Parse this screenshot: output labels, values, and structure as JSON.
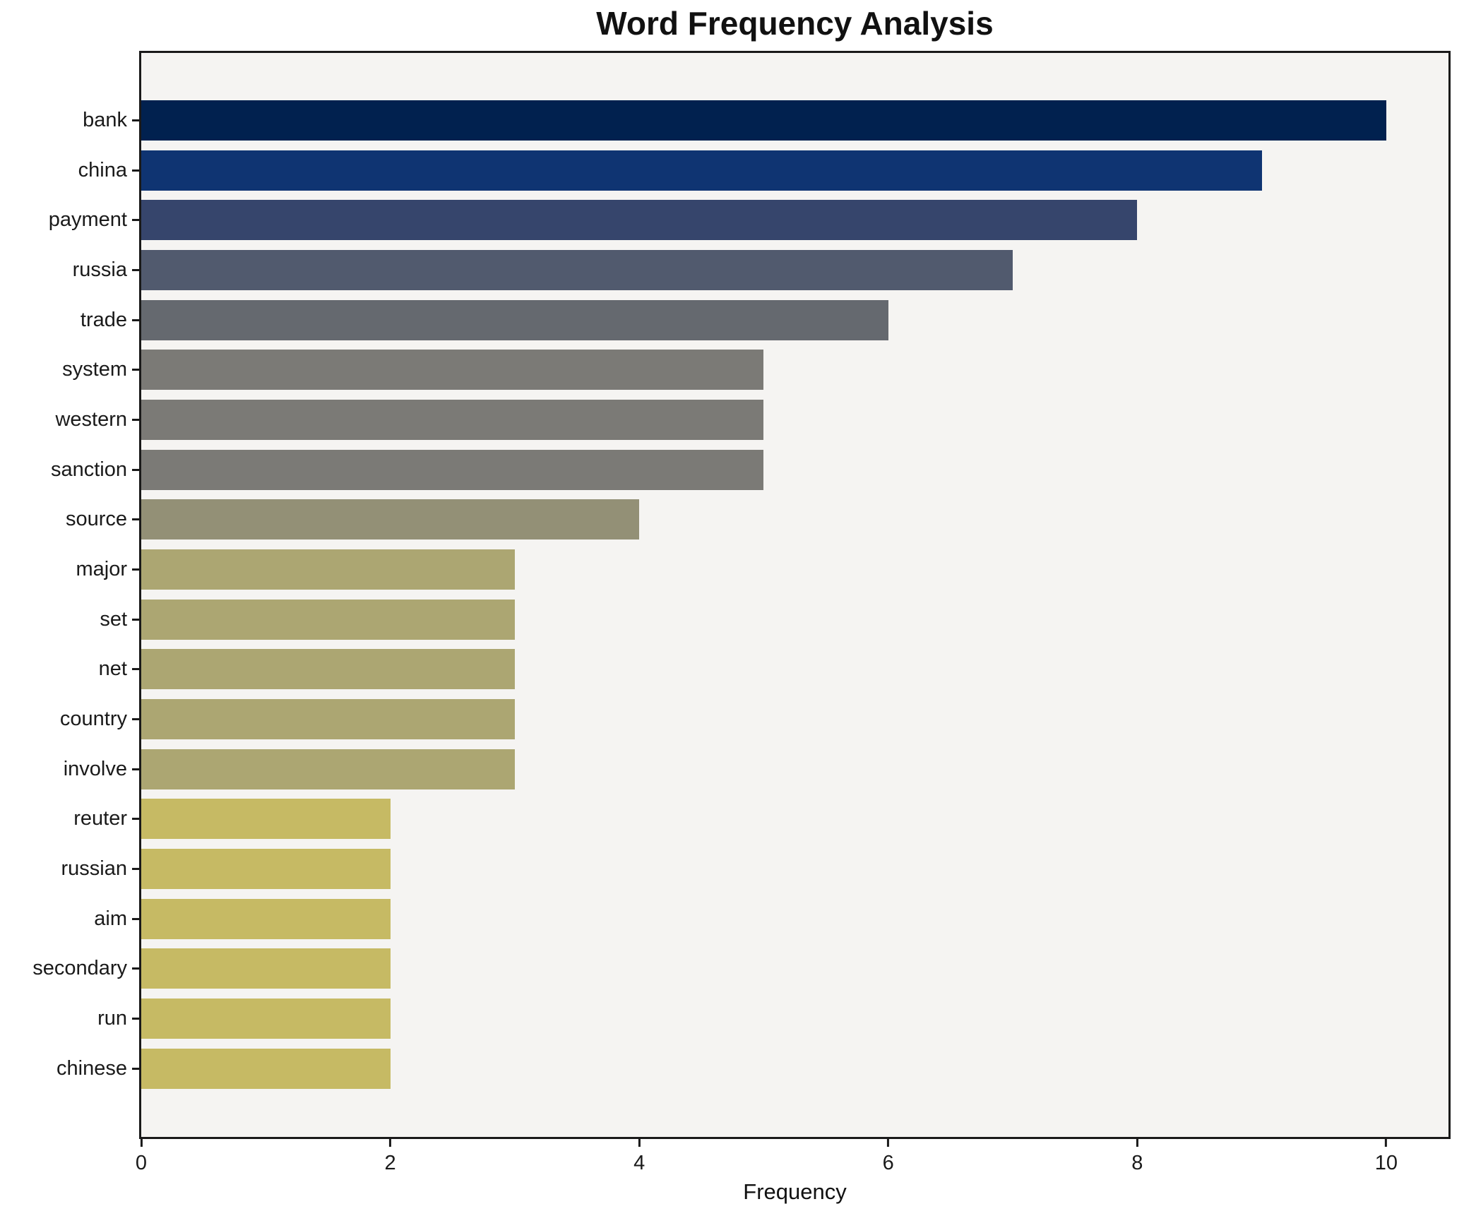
{
  "title": "Word Frequency Analysis",
  "chart_data": {
    "type": "bar",
    "orientation": "horizontal",
    "title": "Word Frequency Analysis",
    "xlabel": "Frequency",
    "ylabel": "",
    "xlim": [
      0,
      10.5
    ],
    "xticks": [
      0,
      2,
      4,
      6,
      8,
      10
    ],
    "grid": false,
    "legend": "none",
    "colormap": "cividis",
    "plot_background": "#f5f4f2",
    "figure_background": "#ffffff",
    "categories": [
      "bank",
      "china",
      "payment",
      "russia",
      "trade",
      "system",
      "western",
      "sanction",
      "source",
      "major",
      "set",
      "net",
      "country",
      "involve",
      "reuter",
      "russian",
      "aim",
      "secondary",
      "run",
      "chinese"
    ],
    "values": [
      10,
      9,
      8,
      7,
      6,
      5,
      5,
      5,
      4,
      3,
      3,
      3,
      3,
      3,
      2,
      2,
      2,
      2,
      2,
      2
    ],
    "bar_colors": [
      "#01214f",
      "#0f3472",
      "#36456c",
      "#515a6e",
      "#65696f",
      "#7b7a76",
      "#7b7a76",
      "#7b7a76",
      "#939076",
      "#aca672",
      "#aca672",
      "#aca672",
      "#aca672",
      "#aca672",
      "#c6ba64",
      "#c6ba64",
      "#c6ba64",
      "#c6ba64",
      "#c6ba64",
      "#c6ba64"
    ]
  }
}
